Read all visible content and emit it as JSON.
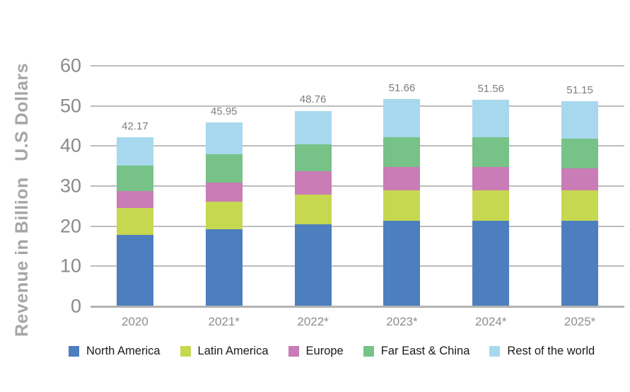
{
  "chart_data": {
    "type": "bar",
    "stacked": true,
    "ylabel": "Revenue in Billion   U.S Dollars",
    "ylim": [
      0,
      60
    ],
    "yticks": [
      0,
      10,
      20,
      30,
      40,
      50,
      60
    ],
    "grid": true,
    "legend_position": "bottom",
    "categories": [
      "2020",
      "2021*",
      "2022*",
      "2023*",
      "2024*",
      "2025*"
    ],
    "totals": [
      "42.17",
      "45.95",
      "48.76",
      "51.66",
      "51.56",
      "51.15"
    ],
    "series": [
      {
        "name": "North America",
        "color": "#4d7fbe",
        "values": [
          17.9,
          19.2,
          20.5,
          21.4,
          21.4,
          21.4
        ]
      },
      {
        "name": "Latin America",
        "color": "#c6d850",
        "values": [
          6.6,
          6.9,
          7.3,
          7.6,
          7.5,
          7.6
        ]
      },
      {
        "name": "Europe",
        "color": "#c97cb5",
        "values": [
          4.2,
          4.8,
          5.9,
          5.8,
          5.9,
          5.4
        ]
      },
      {
        "name": "Far East & China",
        "color": "#76c287",
        "values": [
          6.4,
          7.0,
          6.8,
          7.3,
          7.3,
          7.5
        ]
      },
      {
        "name": "Rest of the world",
        "color": "#a8d8ee",
        "values": [
          7.1,
          8.0,
          8.3,
          9.6,
          9.5,
          9.3
        ]
      }
    ],
    "colors": {
      "gridline": "#bdbdbd",
      "baseline": "#b3b3b3",
      "tick_text": "#8a8a8a",
      "total_text": "#7d7d7d",
      "axis_title_text": "#a6a6a6",
      "legend_text": "#1b1b1b"
    }
  }
}
